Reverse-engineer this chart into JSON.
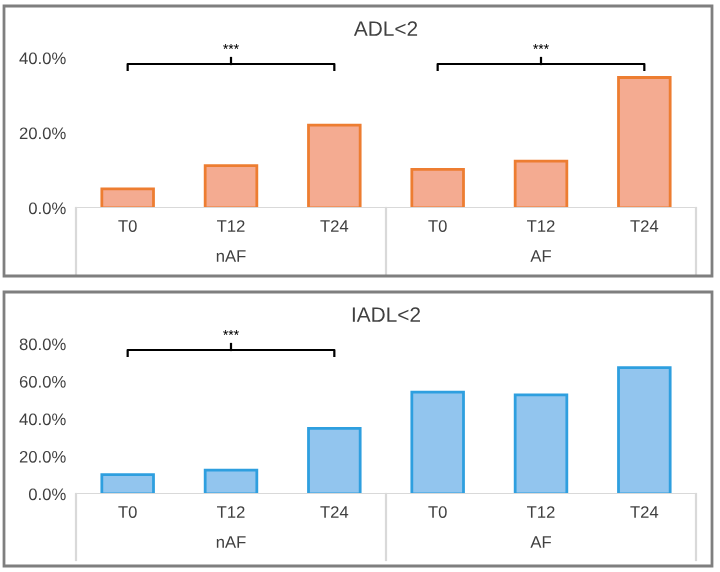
{
  "chart_data": [
    {
      "type": "bar",
      "title": "ADL<2",
      "categories": [
        "T0",
        "T12",
        "T24",
        "T0",
        "T12",
        "T24"
      ],
      "series": [
        {
          "color": "#f4ab91",
          "values": [
            5.1,
            11.3,
            22.1,
            10.3,
            12.5,
            34.8
          ]
        }
      ],
      "ylim": [
        0,
        40
      ],
      "yticks": [
        {
          "value": 0,
          "label": "0.0%"
        },
        {
          "value": 20,
          "label": "20.0%"
        },
        {
          "value": 40,
          "label": "40.0%"
        }
      ],
      "annotations": [
        "***",
        "***",
        "nAF",
        "AF"
      ],
      "grid": false,
      "legend": false
    },
    {
      "type": "bar",
      "title": "IADL<2",
      "categories": [
        "T0",
        "T12",
        "T24",
        "T0",
        "T12",
        "T24"
      ],
      "series": [
        {
          "color": "#92c5ee",
          "values": [
            10.3,
            12.7,
            35.0,
            54.3,
            52.9,
            67.4
          ]
        }
      ],
      "ylim": [
        0,
        80
      ],
      "yticks": [
        {
          "value": 0,
          "label": "0.0%"
        },
        {
          "value": 20,
          "label": "20.0%"
        },
        {
          "value": 40,
          "label": "40.0%"
        },
        {
          "value": 60,
          "label": "60.0%"
        },
        {
          "value": 80,
          "label": "80.0%"
        }
      ],
      "annotations": [
        "***",
        "nAF",
        "AF"
      ],
      "grid": false,
      "legend": false
    }
  ]
}
